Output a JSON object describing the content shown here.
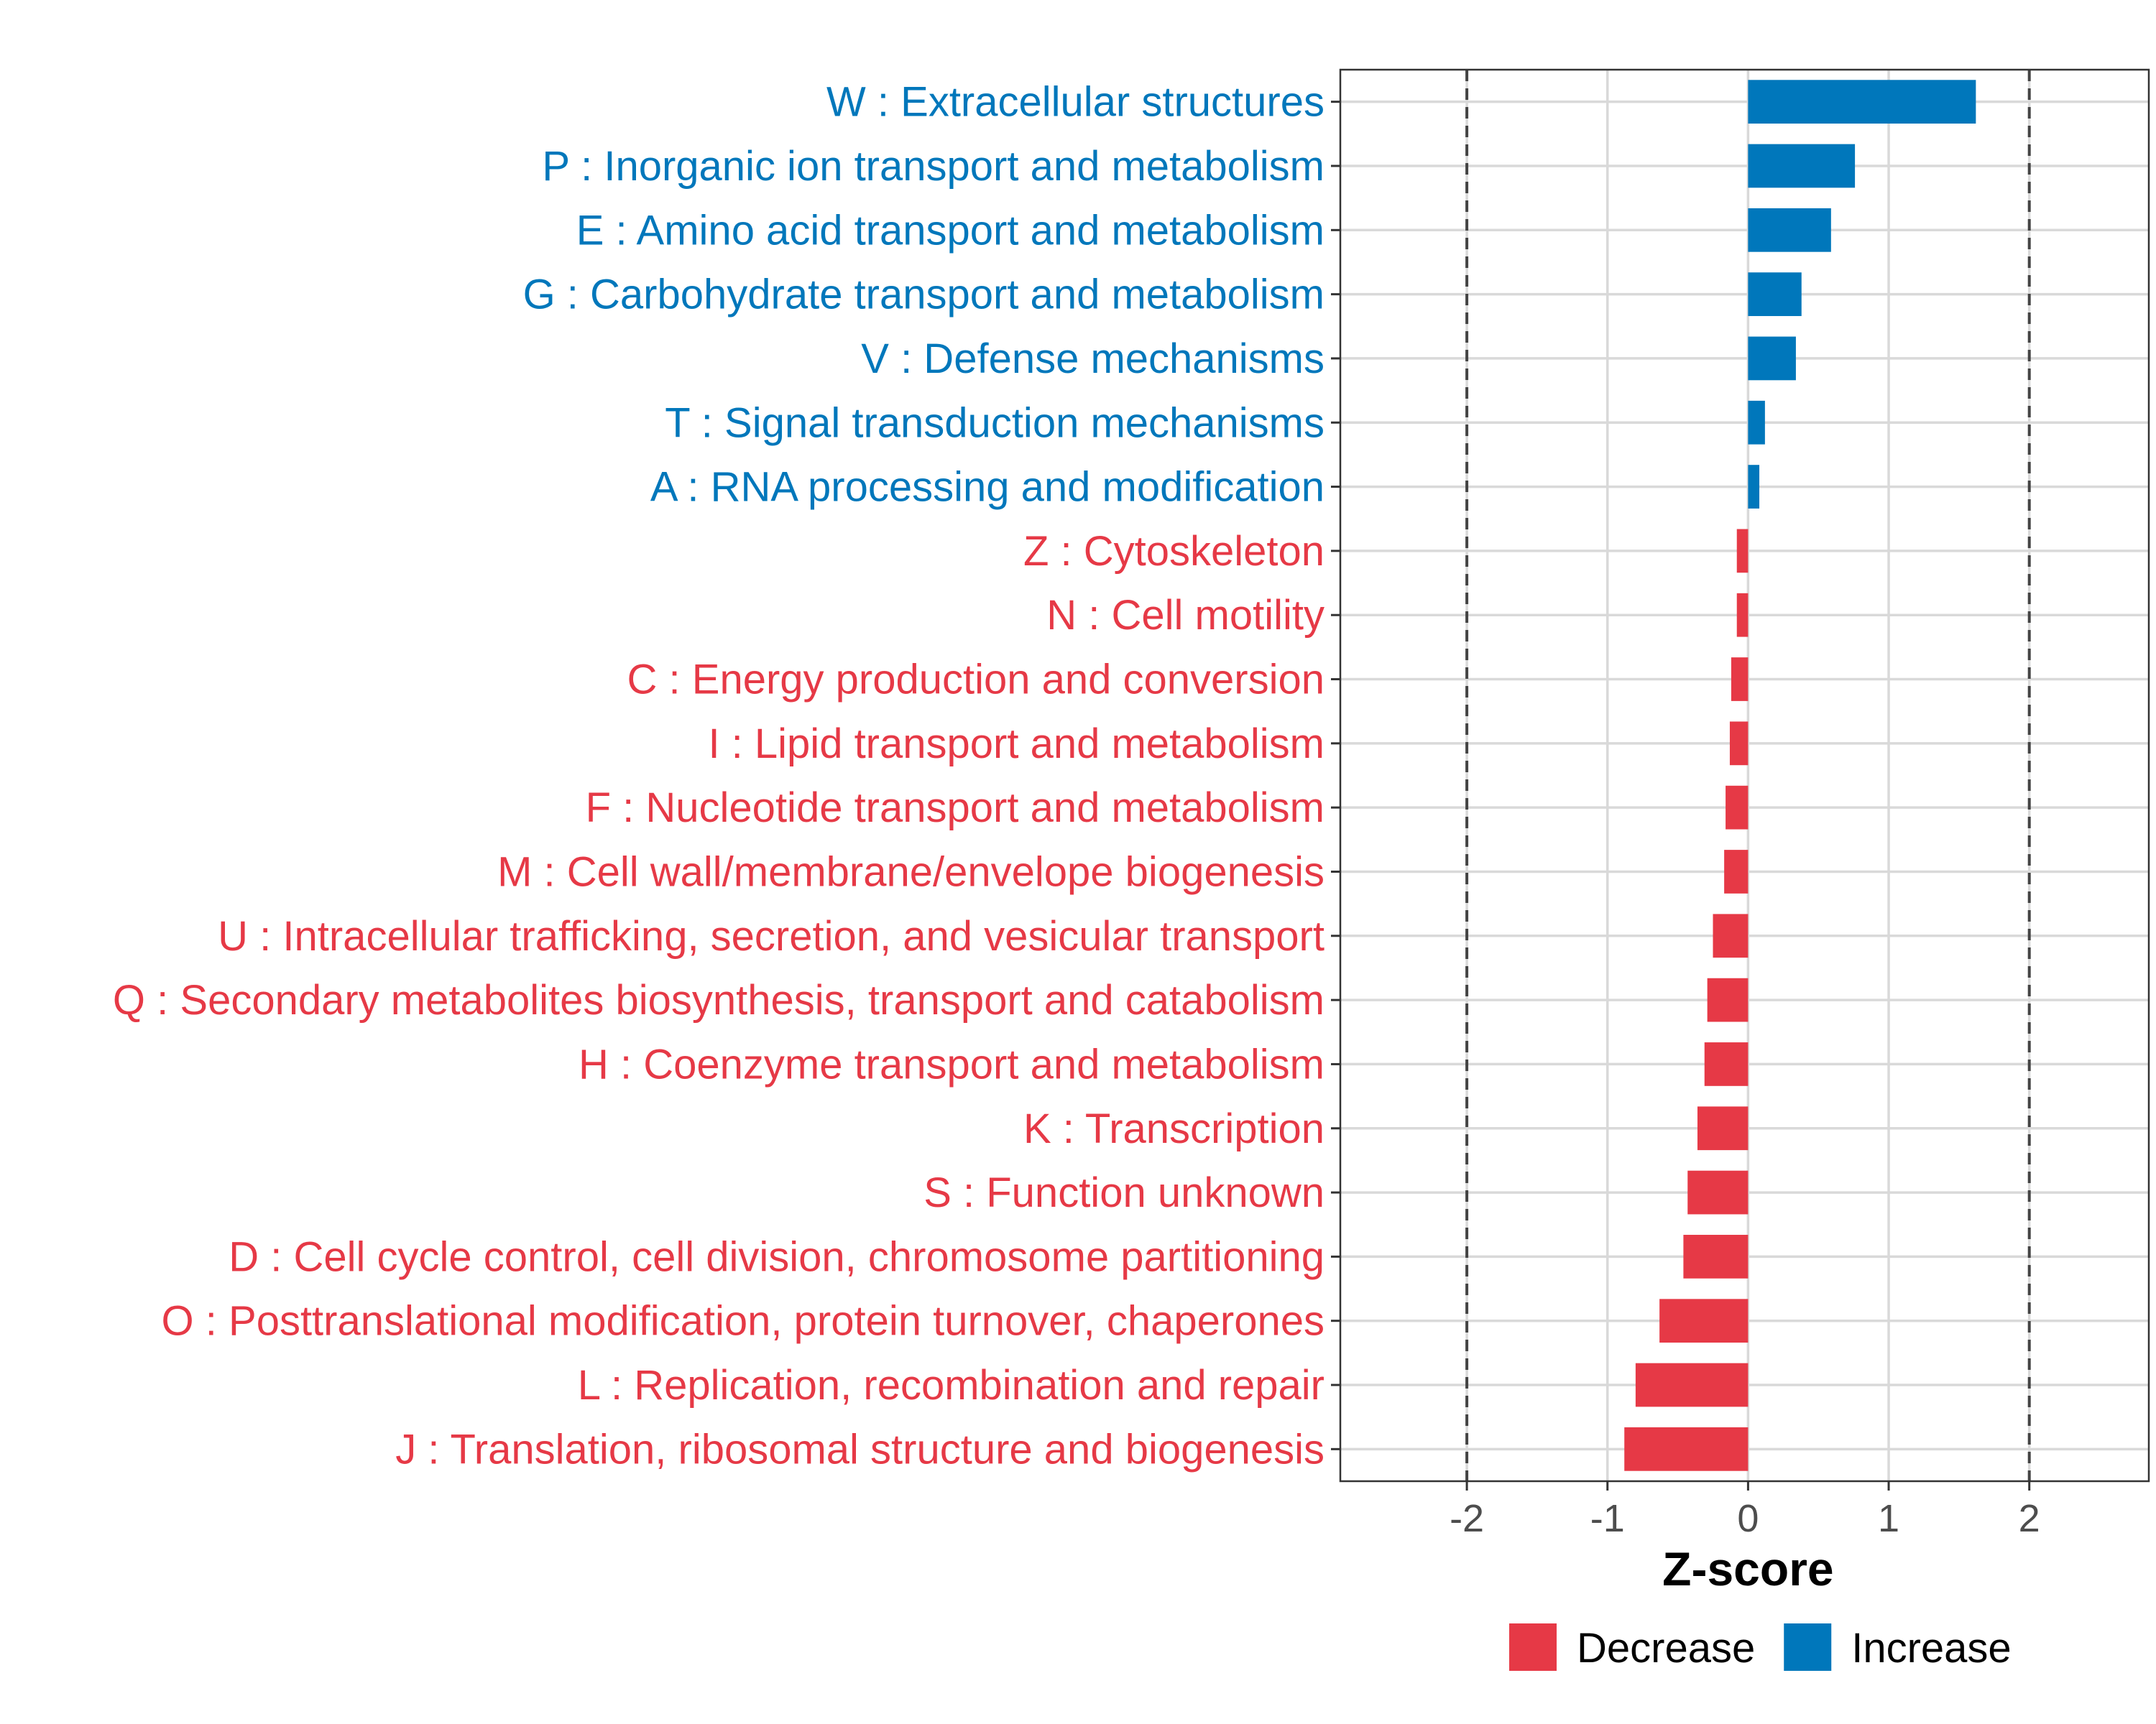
{
  "chart_data": {
    "type": "bar",
    "orientation": "horizontal",
    "xlabel": "Z-score",
    "xlim": [
      -2.9,
      2.85
    ],
    "xticks": [
      -2,
      -1,
      0,
      1,
      2
    ],
    "xtick_labels": [
      "-2",
      "-1",
      "0",
      "1",
      "2"
    ],
    "reference_lines": [
      -2,
      2
    ],
    "grid": true,
    "legend_position": "bottom",
    "colors": {
      "Decrease": "#e63946",
      "Increase": "#0077bb"
    },
    "legend": [
      {
        "name": "Decrease",
        "color": "#e63946"
      },
      {
        "name": "Increase",
        "color": "#0077bb"
      }
    ],
    "categories": [
      "W : Extracellular structures",
      "P : Inorganic ion transport and metabolism",
      "E : Amino acid transport and metabolism",
      "G : Carbohydrate transport and metabolism",
      "V : Defense mechanisms",
      "T : Signal transduction mechanisms",
      "A : RNA processing and modification",
      "Z : Cytoskeleton",
      "N : Cell motility",
      "C : Energy production and conversion",
      "I : Lipid transport and metabolism",
      "F : Nucleotide transport and metabolism",
      "M : Cell wall/membrane/envelope biogenesis",
      "U : Intracellular trafficking, secretion, and vesicular transport",
      "Q : Secondary metabolites biosynthesis, transport and catabolism",
      "H : Coenzyme transport and metabolism",
      "K : Transcription",
      "S : Function unknown",
      "D : Cell cycle control, cell division, chromosome partitioning",
      "O : Posttranslational modification, protein turnover, chaperones",
      "L : Replication, recombination and repair",
      "J : Translation, ribosomal structure and biogenesis"
    ],
    "values": [
      1.62,
      0.76,
      0.59,
      0.38,
      0.34,
      0.12,
      0.08,
      -0.08,
      -0.08,
      -0.12,
      -0.13,
      -0.16,
      -0.17,
      -0.25,
      -0.29,
      -0.31,
      -0.36,
      -0.43,
      -0.46,
      -0.63,
      -0.8,
      -0.88
    ],
    "groups": [
      "Increase",
      "Increase",
      "Increase",
      "Increase",
      "Increase",
      "Increase",
      "Increase",
      "Decrease",
      "Decrease",
      "Decrease",
      "Decrease",
      "Decrease",
      "Decrease",
      "Decrease",
      "Decrease",
      "Decrease",
      "Decrease",
      "Decrease",
      "Decrease",
      "Decrease",
      "Decrease",
      "Decrease"
    ]
  }
}
